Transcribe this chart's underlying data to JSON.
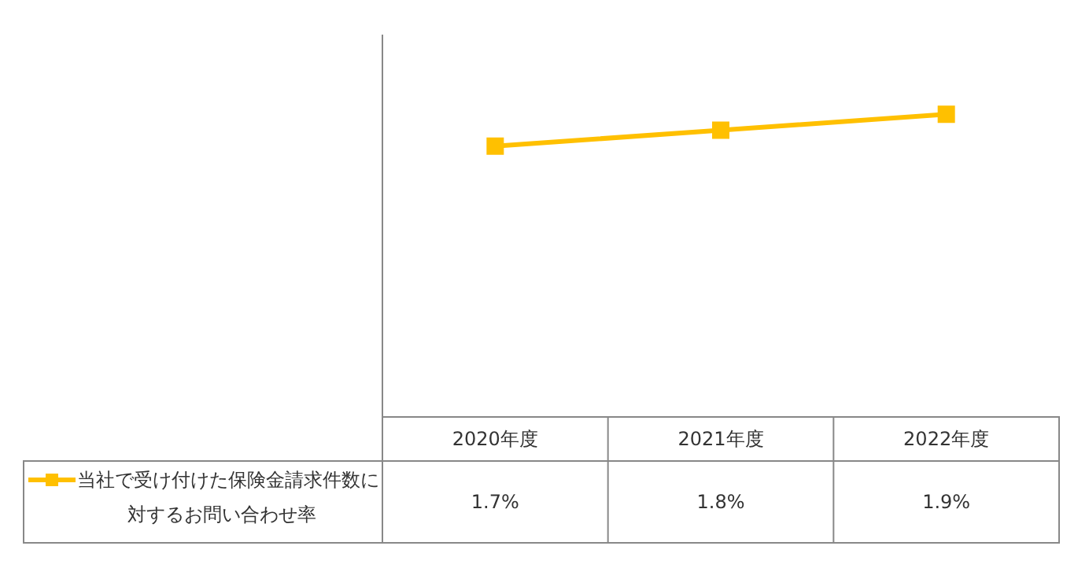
{
  "chart_data": {
    "type": "line",
    "categories": [
      "2020年度",
      "2021年度",
      "2022年度"
    ],
    "series": [
      {
        "name": "当社で受け付けた保険金請求件数に対するお問い合わせ率",
        "color": "#ffc000",
        "values": [
          1.7,
          1.8,
          1.9
        ],
        "value_labels": [
          "1.7%",
          "1.8%",
          "1.9%"
        ]
      }
    ],
    "ylim": [
      0,
      2.4
    ],
    "tick_labels": "x",
    "grid": false,
    "legend": "bottom left",
    "marker": "square",
    "line_style": "solid"
  }
}
